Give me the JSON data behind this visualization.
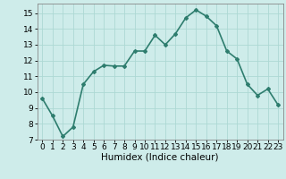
{
  "x": [
    0,
    1,
    2,
    3,
    4,
    5,
    6,
    7,
    8,
    9,
    10,
    11,
    12,
    13,
    14,
    15,
    16,
    17,
    18,
    19,
    20,
    21,
    22,
    23
  ],
  "y": [
    9.6,
    8.5,
    7.2,
    7.8,
    10.5,
    11.3,
    11.7,
    11.65,
    11.65,
    12.6,
    12.6,
    13.6,
    13.0,
    13.7,
    14.7,
    15.2,
    14.8,
    14.2,
    12.6,
    12.1,
    10.5,
    9.8,
    10.2,
    9.2
  ],
  "line_color": "#2e7d6e",
  "marker": "D",
  "marker_size": 2.0,
  "line_width": 1.2,
  "bg_color": "#ceecea",
  "grid_color": "#add8d4",
  "xlabel": "Humidex (Indice chaleur)",
  "xlim": [
    -0.5,
    23.5
  ],
  "ylim": [
    7,
    15.6
  ],
  "yticks": [
    7,
    8,
    9,
    10,
    11,
    12,
    13,
    14,
    15
  ],
  "xticks": [
    0,
    1,
    2,
    3,
    4,
    5,
    6,
    7,
    8,
    9,
    10,
    11,
    12,
    13,
    14,
    15,
    16,
    17,
    18,
    19,
    20,
    21,
    22,
    23
  ],
  "xlabel_fontsize": 7.5,
  "tick_fontsize": 6.5
}
